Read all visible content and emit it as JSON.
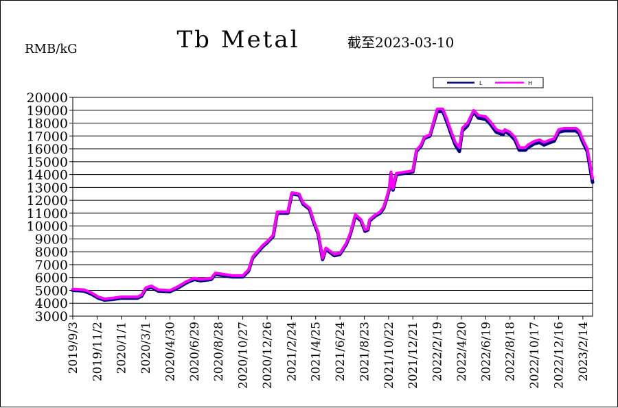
{
  "chart_data": {
    "type": "line",
    "title": "Tb Metal",
    "subtitle": "截至2023-03-10",
    "ylabel": "RMB/kG",
    "xlabel": "",
    "ylim": [
      3000,
      20000
    ],
    "ytick_step": 1000,
    "xlim": [
      "2019-09-03",
      "2023-03-10"
    ],
    "x_tick_labels": [
      "2019/9/3",
      "2019/11/2",
      "2020/1/1",
      "2020/3/1",
      "2020/4/30",
      "2020/6/29",
      "2020/8/28",
      "2020/10/27",
      "2020/12/26",
      "2021/2/24",
      "2021/4/25",
      "2021/6/24",
      "2021/8/23",
      "2021/10/22",
      "2021/12/21",
      "2022/2/19",
      "2022/4/20",
      "2022/6/19",
      "2022/8/18",
      "2022/10/17",
      "2022/12/16",
      "2023/2/14"
    ],
    "grid": true,
    "legend_position": "top-right",
    "colors": {
      "L": "#000080",
      "H": "#ff00ff",
      "grid": "#000000",
      "axis": "#000000"
    },
    "series": [
      {
        "name": "L",
        "points": [
          [
            "2019-09-03",
            5000
          ],
          [
            "2019-10-01",
            4950
          ],
          [
            "2019-10-20",
            4700
          ],
          [
            "2019-11-05",
            4400
          ],
          [
            "2019-11-20",
            4250
          ],
          [
            "2019-12-10",
            4300
          ],
          [
            "2020-01-01",
            4400
          ],
          [
            "2020-02-10",
            4400
          ],
          [
            "2020-02-20",
            4550
          ],
          [
            "2020-03-01",
            5100
          ],
          [
            "2020-03-15",
            5250
          ],
          [
            "2020-04-01",
            4950
          ],
          [
            "2020-04-30",
            4900
          ],
          [
            "2020-05-20",
            5200
          ],
          [
            "2020-06-10",
            5600
          ],
          [
            "2020-06-29",
            5850
          ],
          [
            "2020-07-15",
            5750
          ],
          [
            "2020-08-10",
            5850
          ],
          [
            "2020-08-20",
            6250
          ],
          [
            "2020-09-10",
            6150
          ],
          [
            "2020-10-01",
            6050
          ],
          [
            "2020-10-27",
            6050
          ],
          [
            "2020-11-10",
            6500
          ],
          [
            "2020-11-20",
            7500
          ],
          [
            "2020-12-01",
            7900
          ],
          [
            "2020-12-15",
            8400
          ],
          [
            "2020-12-26",
            8700
          ],
          [
            "2021-01-10",
            9200
          ],
          [
            "2021-01-20",
            11000
          ],
          [
            "2021-02-15",
            11000
          ],
          [
            "2021-02-25",
            12500
          ],
          [
            "2021-03-15",
            12400
          ],
          [
            "2021-03-25",
            11700
          ],
          [
            "2021-04-10",
            11300
          ],
          [
            "2021-04-20",
            10300
          ],
          [
            "2021-05-01",
            9400
          ],
          [
            "2021-05-12",
            7400
          ],
          [
            "2021-05-20",
            8200
          ],
          [
            "2021-06-10",
            7700
          ],
          [
            "2021-06-24",
            7800
          ],
          [
            "2021-07-10",
            8600
          ],
          [
            "2021-07-20",
            9400
          ],
          [
            "2021-08-01",
            10800
          ],
          [
            "2021-08-15",
            10400
          ],
          [
            "2021-08-25",
            9600
          ],
          [
            "2021-09-01",
            9700
          ],
          [
            "2021-09-05",
            10400
          ],
          [
            "2021-09-20",
            10800
          ],
          [
            "2021-10-01",
            11000
          ],
          [
            "2021-10-10",
            11400
          ],
          [
            "2021-10-18",
            12200
          ],
          [
            "2021-10-25",
            13000
          ],
          [
            "2021-10-28",
            14100
          ],
          [
            "2021-11-02",
            12800
          ],
          [
            "2021-11-10",
            14000
          ],
          [
            "2021-12-01",
            14100
          ],
          [
            "2021-12-21",
            14200
          ],
          [
            "2021-12-30",
            15800
          ],
          [
            "2022-01-10",
            16200
          ],
          [
            "2022-01-18",
            16800
          ],
          [
            "2022-02-01",
            17000
          ],
          [
            "2022-02-19",
            18900
          ],
          [
            "2022-03-05",
            18900
          ],
          [
            "2022-03-15",
            18100
          ],
          [
            "2022-03-25",
            17200
          ],
          [
            "2022-04-05",
            16300
          ],
          [
            "2022-04-15",
            15800
          ],
          [
            "2022-04-22",
            17400
          ],
          [
            "2022-05-05",
            17800
          ],
          [
            "2022-05-20",
            18900
          ],
          [
            "2022-06-01",
            18400
          ],
          [
            "2022-06-19",
            18300
          ],
          [
            "2022-07-01",
            17900
          ],
          [
            "2022-07-15",
            17300
          ],
          [
            "2022-08-01",
            17100
          ],
          [
            "2022-08-05",
            17400
          ],
          [
            "2022-08-18",
            17100
          ],
          [
            "2022-08-30",
            16700
          ],
          [
            "2022-09-10",
            15900
          ],
          [
            "2022-09-25",
            15900
          ],
          [
            "2022-10-01",
            16100
          ],
          [
            "2022-10-17",
            16400
          ],
          [
            "2022-10-30",
            16500
          ],
          [
            "2022-11-10",
            16300
          ],
          [
            "2022-11-25",
            16500
          ],
          [
            "2022-12-05",
            16600
          ],
          [
            "2022-12-16",
            17300
          ],
          [
            "2022-12-30",
            17400
          ],
          [
            "2023-01-15",
            17400
          ],
          [
            "2023-01-28",
            17400
          ],
          [
            "2023-02-05",
            17200
          ],
          [
            "2023-02-14",
            16500
          ],
          [
            "2023-02-25",
            15800
          ],
          [
            "2023-03-05",
            14300
          ],
          [
            "2023-03-10",
            13400
          ]
        ]
      },
      {
        "name": "H",
        "points": [
          [
            "2019-09-03",
            5100
          ],
          [
            "2019-10-01",
            5050
          ],
          [
            "2019-10-20",
            4800
          ],
          [
            "2019-11-05",
            4500
          ],
          [
            "2019-11-20",
            4350
          ],
          [
            "2019-12-10",
            4400
          ],
          [
            "2020-01-01",
            4500
          ],
          [
            "2020-02-10",
            4500
          ],
          [
            "2020-02-20",
            4650
          ],
          [
            "2020-03-01",
            5200
          ],
          [
            "2020-03-15",
            5350
          ],
          [
            "2020-04-01",
            5050
          ],
          [
            "2020-04-30",
            5000
          ],
          [
            "2020-05-20",
            5300
          ],
          [
            "2020-06-10",
            5700
          ],
          [
            "2020-06-29",
            5950
          ],
          [
            "2020-07-15",
            5850
          ],
          [
            "2020-08-10",
            5950
          ],
          [
            "2020-08-20",
            6350
          ],
          [
            "2020-09-10",
            6250
          ],
          [
            "2020-10-01",
            6150
          ],
          [
            "2020-10-27",
            6150
          ],
          [
            "2020-11-10",
            6600
          ],
          [
            "2020-11-20",
            7600
          ],
          [
            "2020-12-01",
            8000
          ],
          [
            "2020-12-15",
            8500
          ],
          [
            "2020-12-26",
            8800
          ],
          [
            "2021-01-10",
            9300
          ],
          [
            "2021-01-20",
            11100
          ],
          [
            "2021-02-15",
            11100
          ],
          [
            "2021-02-25",
            12600
          ],
          [
            "2021-03-15",
            12500
          ],
          [
            "2021-03-25",
            11800
          ],
          [
            "2021-04-10",
            11400
          ],
          [
            "2021-04-20",
            10400
          ],
          [
            "2021-05-01",
            9500
          ],
          [
            "2021-05-12",
            7500
          ],
          [
            "2021-05-20",
            8300
          ],
          [
            "2021-06-10",
            7800
          ],
          [
            "2021-06-24",
            7900
          ],
          [
            "2021-07-10",
            8700
          ],
          [
            "2021-07-20",
            9500
          ],
          [
            "2021-08-01",
            10900
          ],
          [
            "2021-08-15",
            10500
          ],
          [
            "2021-08-25",
            9700
          ],
          [
            "2021-09-01",
            9800
          ],
          [
            "2021-09-05",
            10500
          ],
          [
            "2021-09-20",
            10900
          ],
          [
            "2021-10-01",
            11100
          ],
          [
            "2021-10-10",
            11500
          ],
          [
            "2021-10-18",
            12300
          ],
          [
            "2021-10-25",
            13100
          ],
          [
            "2021-10-28",
            14200
          ],
          [
            "2021-11-02",
            12900
          ],
          [
            "2021-11-10",
            14100
          ],
          [
            "2021-12-01",
            14200
          ],
          [
            "2021-12-21",
            14300
          ],
          [
            "2021-12-30",
            15900
          ],
          [
            "2022-01-10",
            16300
          ],
          [
            "2022-01-18",
            16900
          ],
          [
            "2022-02-01",
            17100
          ],
          [
            "2022-02-19",
            19100
          ],
          [
            "2022-03-05",
            19100
          ],
          [
            "2022-03-15",
            18300
          ],
          [
            "2022-03-25",
            17400
          ],
          [
            "2022-04-05",
            16500
          ],
          [
            "2022-04-15",
            16100
          ],
          [
            "2022-04-22",
            17600
          ],
          [
            "2022-05-05",
            18000
          ],
          [
            "2022-05-20",
            19000
          ],
          [
            "2022-06-01",
            18600
          ],
          [
            "2022-06-19",
            18500
          ],
          [
            "2022-07-01",
            18100
          ],
          [
            "2022-07-15",
            17500
          ],
          [
            "2022-08-01",
            17300
          ],
          [
            "2022-08-05",
            17500
          ],
          [
            "2022-08-18",
            17300
          ],
          [
            "2022-08-30",
            16900
          ],
          [
            "2022-09-10",
            16100
          ],
          [
            "2022-09-25",
            16100
          ],
          [
            "2022-10-01",
            16300
          ],
          [
            "2022-10-17",
            16600
          ],
          [
            "2022-10-30",
            16700
          ],
          [
            "2022-11-10",
            16500
          ],
          [
            "2022-11-25",
            16700
          ],
          [
            "2022-12-05",
            16800
          ],
          [
            "2022-12-16",
            17500
          ],
          [
            "2022-12-30",
            17600
          ],
          [
            "2023-01-15",
            17600
          ],
          [
            "2023-01-28",
            17600
          ],
          [
            "2023-02-05",
            17400
          ],
          [
            "2023-02-14",
            16700
          ],
          [
            "2023-02-25",
            16000
          ],
          [
            "2023-03-05",
            14600
          ],
          [
            "2023-03-10",
            13700
          ]
        ]
      }
    ]
  }
}
